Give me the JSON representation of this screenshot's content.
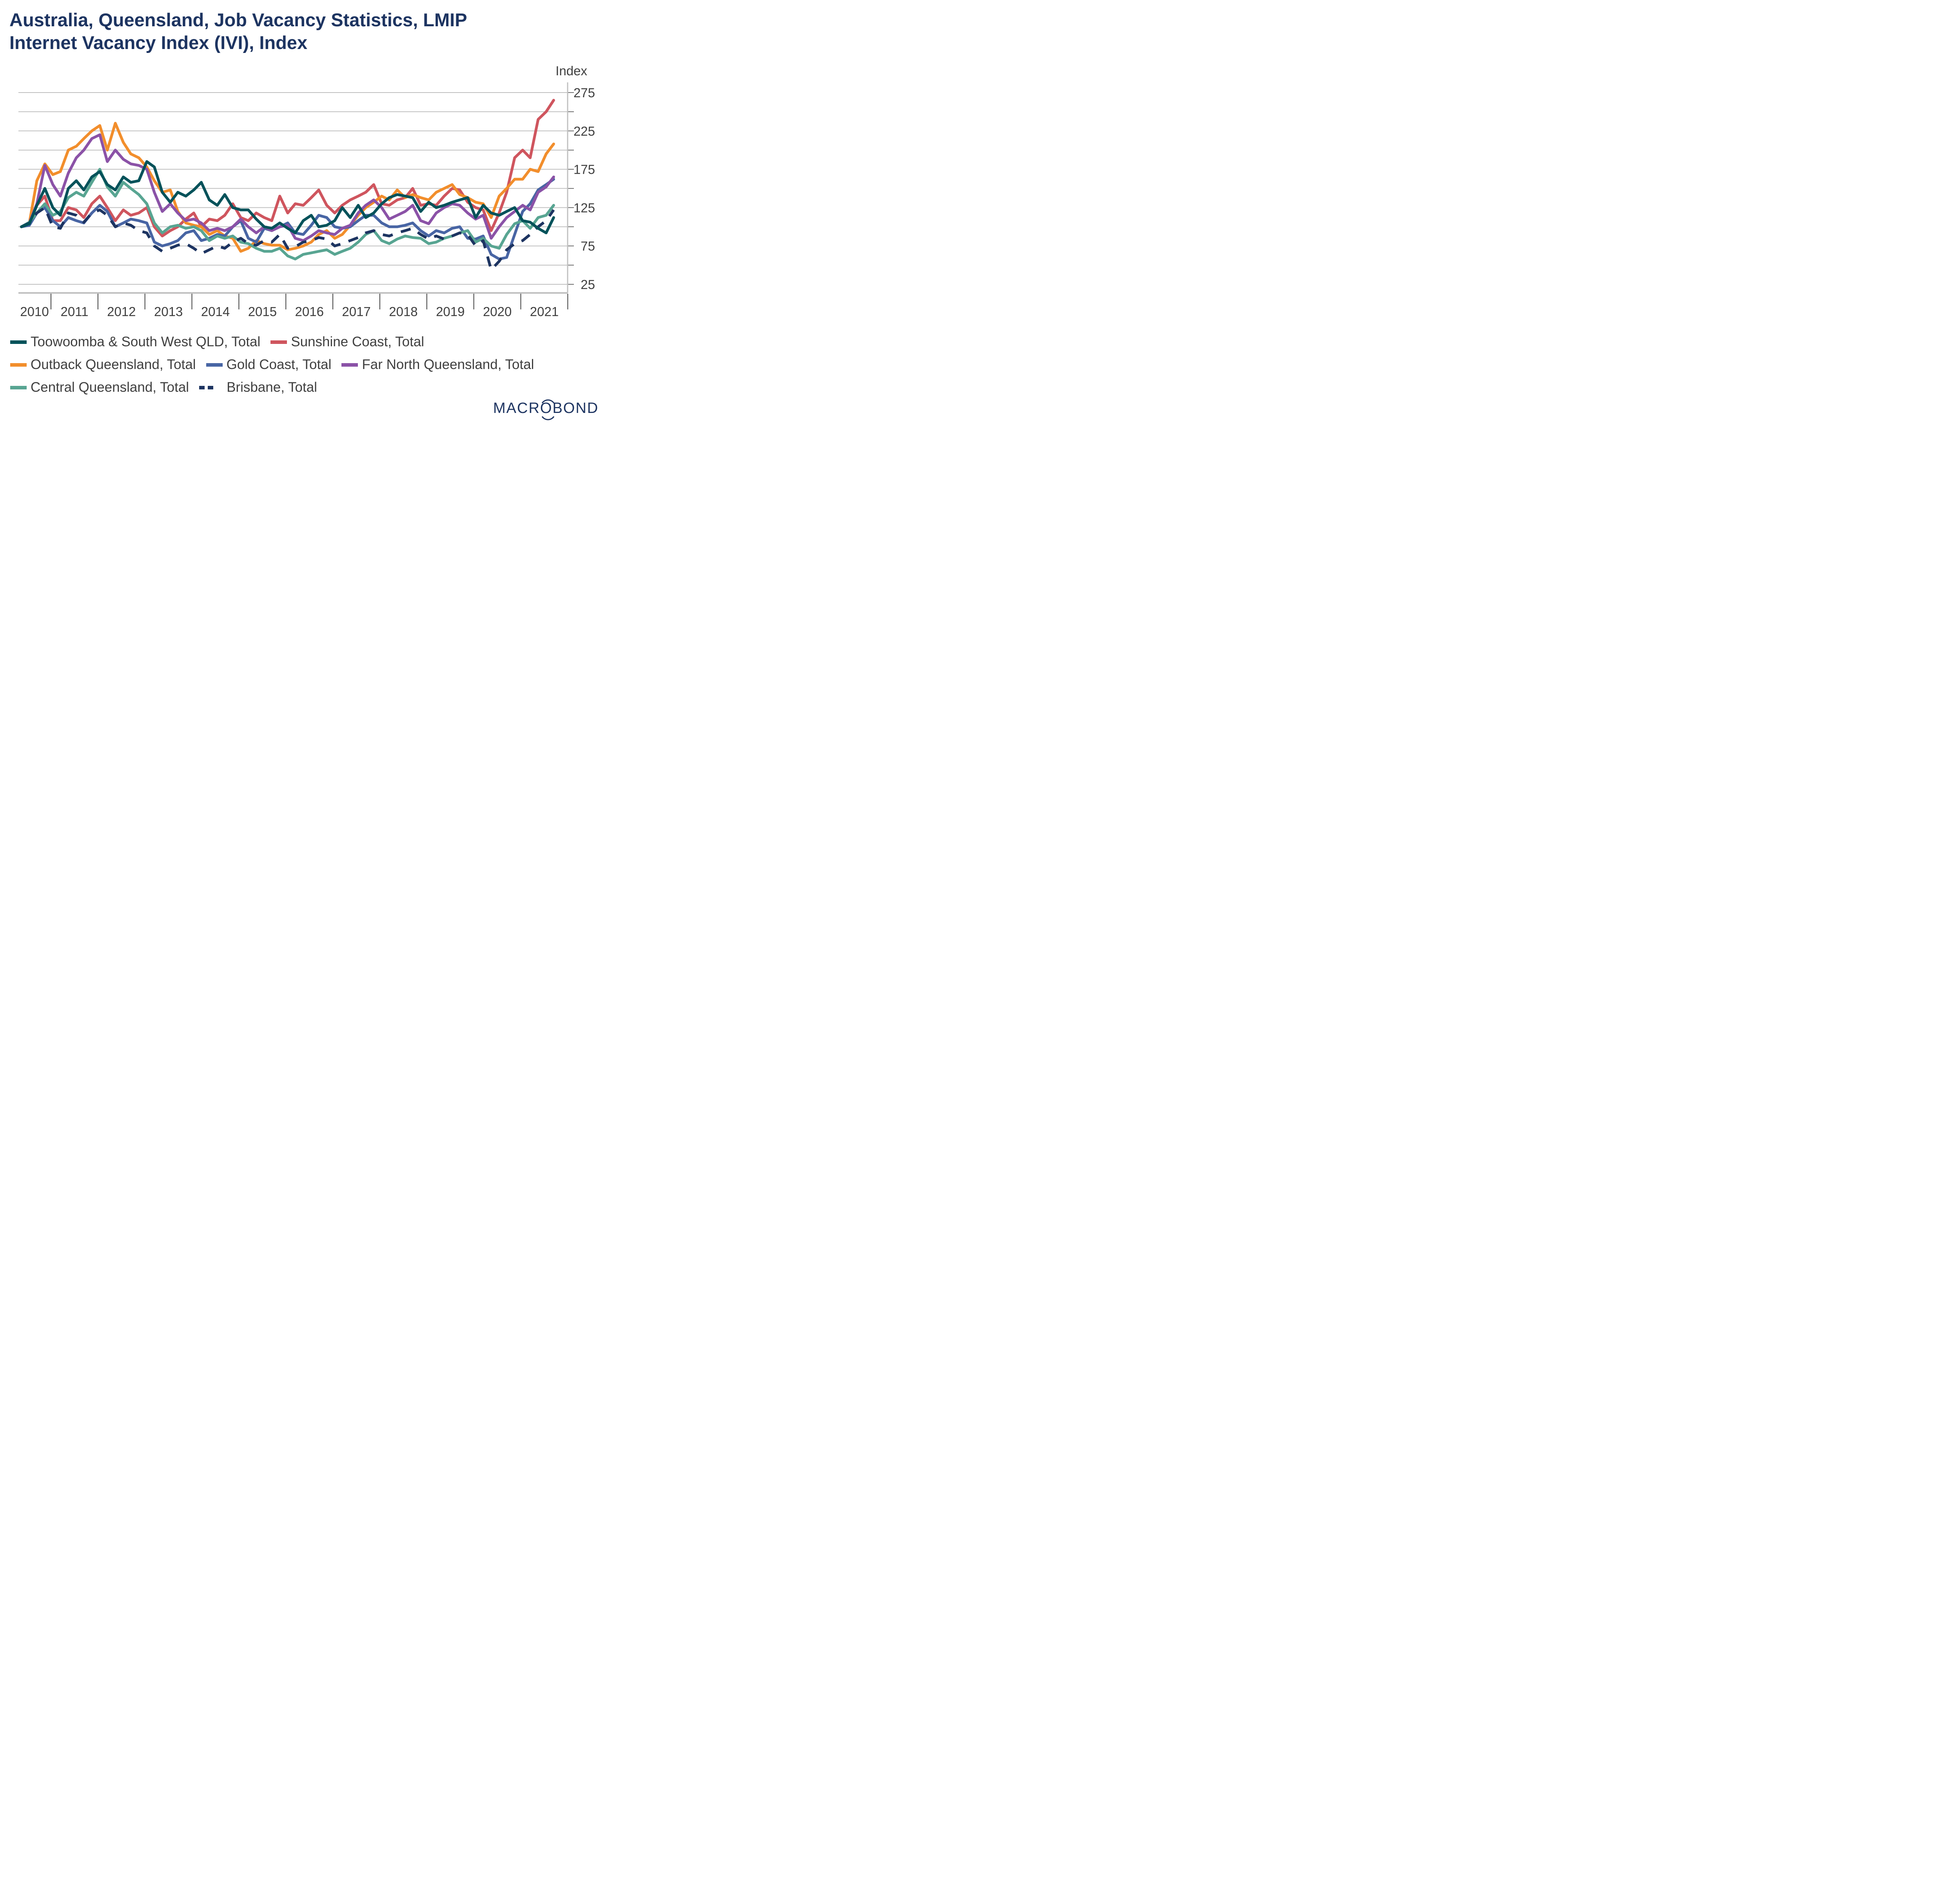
{
  "title_line1": "Australia, Queensland, Job Vacancy Statistics, LMIP",
  "title_line2": "Internet Vacancy Index (IVI), Index",
  "logo_text": "MACROBOND",
  "chart_data": {
    "type": "line",
    "title": "Australia, Queensland, Job Vacancy Statistics, LMIP Internet Vacancy Index (IVI), Index",
    "ylabel": "Index",
    "xlabel": "",
    "ylim": [
      5,
      290
    ],
    "xlim": [
      2010.0,
      2022.0
    ],
    "yticks": [
      25,
      75,
      125,
      175,
      225,
      275
    ],
    "yminor_ticks": [
      50,
      100,
      150,
      200,
      250
    ],
    "xtick_labels": [
      "2010",
      "2011",
      "2012",
      "2013",
      "2014",
      "2015",
      "2016",
      "2017",
      "2018",
      "2019",
      "2020",
      "2021"
    ],
    "y_axis_side": "right",
    "grid": true,
    "legend_position": "bottom",
    "x": [
      2010.37,
      2010.54,
      2010.7,
      2010.87,
      2011.04,
      2011.2,
      2011.37,
      2011.54,
      2011.7,
      2011.87,
      2012.04,
      2012.2,
      2012.37,
      2012.54,
      2012.7,
      2012.87,
      2013.04,
      2013.2,
      2013.37,
      2013.54,
      2013.7,
      2013.87,
      2014.04,
      2014.2,
      2014.37,
      2014.54,
      2014.7,
      2014.87,
      2015.04,
      2015.2,
      2015.37,
      2015.54,
      2015.7,
      2015.87,
      2016.04,
      2016.2,
      2016.37,
      2016.54,
      2016.7,
      2016.87,
      2017.04,
      2017.2,
      2017.37,
      2017.54,
      2017.7,
      2017.87,
      2018.04,
      2018.2,
      2018.37,
      2018.54,
      2018.7,
      2018.87,
      2019.04,
      2019.2,
      2019.37,
      2019.54,
      2019.7,
      2019.87,
      2020.04,
      2020.2,
      2020.37,
      2020.54,
      2020.7,
      2020.87,
      2021.04,
      2021.2,
      2021.37,
      2021.54,
      2021.7
    ],
    "series": [
      {
        "name": "Toowoomba & South West QLD, Total",
        "color": "#03525a",
        "dash": false,
        "values": [
          100,
          104,
          128,
          150,
          125,
          115,
          150,
          160,
          148,
          165,
          172,
          155,
          148,
          165,
          158,
          160,
          185,
          178,
          145,
          132,
          145,
          140,
          148,
          158,
          135,
          128,
          142,
          125,
          122,
          122,
          110,
          100,
          98,
          105,
          98,
          92,
          108,
          115,
          100,
          102,
          108,
          125,
          112,
          128,
          112,
          118,
          130,
          138,
          142,
          140,
          138,
          120,
          132,
          125,
          128,
          132,
          135,
          138,
          112,
          128,
          118,
          115,
          120,
          125,
          108,
          106,
          98,
          92,
          112
        ]
      },
      {
        "name": "Sunshine Coast, Total",
        "color": "#cf555e",
        "dash": false,
        "values": [
          100,
          104,
          128,
          140,
          108,
          108,
          125,
          122,
          112,
          130,
          140,
          125,
          108,
          122,
          115,
          118,
          125,
          100,
          88,
          95,
          100,
          110,
          118,
          100,
          110,
          108,
          115,
          130,
          112,
          108,
          118,
          112,
          108,
          140,
          118,
          130,
          128,
          138,
          148,
          128,
          118,
          128,
          135,
          140,
          145,
          155,
          130,
          128,
          135,
          138,
          150,
          128,
          130,
          128,
          140,
          150,
          148,
          132,
          125,
          122,
          95,
          118,
          145,
          190,
          200,
          190,
          240,
          250,
          265
        ]
      },
      {
        "name": "Outback Queensland, Total",
        "color": "#f28e2c",
        "dash": false,
        "values": [
          100,
          105,
          160,
          182,
          168,
          172,
          200,
          205,
          215,
          225,
          232,
          200,
          235,
          210,
          195,
          190,
          178,
          160,
          145,
          148,
          120,
          105,
          102,
          100,
          90,
          95,
          88,
          85,
          68,
          72,
          82,
          78,
          76,
          76,
          70,
          72,
          75,
          80,
          90,
          95,
          85,
          90,
          102,
          115,
          125,
          132,
          140,
          135,
          148,
          138,
          142,
          138,
          135,
          145,
          150,
          155,
          142,
          138,
          132,
          130,
          112,
          140,
          150,
          162,
          162,
          175,
          172,
          195,
          208
        ]
      },
      {
        "name": "Gold Coast, Total",
        "color": "#4865a4",
        "dash": false,
        "values": [
          100,
          102,
          118,
          125,
          108,
          100,
          112,
          108,
          105,
          118,
          128,
          120,
          100,
          105,
          110,
          108,
          105,
          80,
          75,
          78,
          82,
          92,
          95,
          82,
          85,
          90,
          88,
          100,
          108,
          85,
          80,
          98,
          95,
          100,
          105,
          92,
          90,
          102,
          115,
          112,
          100,
          98,
          100,
          108,
          115,
          115,
          105,
          100,
          100,
          102,
          105,
          95,
          88,
          95,
          92,
          98,
          100,
          85,
          84,
          88,
          64,
          58,
          60,
          90,
          120,
          130,
          148,
          155,
          162
        ]
      },
      {
        "name": "Far North Queensland, Total",
        "color": "#8b52a7",
        "dash": false,
        "values": [
          100,
          105,
          130,
          180,
          155,
          140,
          170,
          190,
          200,
          215,
          220,
          185,
          200,
          188,
          182,
          180,
          175,
          145,
          120,
          130,
          118,
          108,
          110,
          105,
          95,
          98,
          95,
          100,
          110,
          100,
          92,
          100,
          95,
          100,
          102,
          85,
          82,
          88,
          95,
          92,
          90,
          98,
          102,
          118,
          128,
          135,
          125,
          110,
          115,
          120,
          128,
          108,
          104,
          118,
          125,
          130,
          128,
          118,
          110,
          115,
          85,
          100,
          112,
          120,
          128,
          122,
          145,
          152,
          165
        ]
      },
      {
        "name": "Central Queensland, Total",
        "color": "#58a592",
        "dash": false,
        "values": [
          100,
          106,
          118,
          130,
          115,
          120,
          138,
          145,
          140,
          158,
          175,
          152,
          140,
          158,
          150,
          142,
          130,
          105,
          92,
          100,
          102,
          98,
          100,
          95,
          82,
          88,
          85,
          88,
          80,
          78,
          72,
          68,
          68,
          72,
          62,
          58,
          64,
          66,
          68,
          70,
          64,
          68,
          72,
          80,
          90,
          95,
          82,
          78,
          84,
          88,
          86,
          85,
          78,
          80,
          85,
          88,
          92,
          95,
          80,
          85,
          75,
          72,
          90,
          104,
          108,
          98,
          112,
          115,
          128
        ]
      },
      {
        "name": "Brisbane, Total",
        "color": "#1d3461",
        "dash": true,
        "values": [
          100,
          105,
          118,
          125,
          100,
          98,
          118,
          115,
          106,
          118,
          122,
          115,
          100,
          105,
          102,
          95,
          92,
          75,
          68,
          72,
          76,
          78,
          72,
          65,
          70,
          75,
          72,
          80,
          85,
          78,
          76,
          82,
          80,
          90,
          72,
          74,
          80,
          82,
          86,
          84,
          75,
          78,
          82,
          86,
          92,
          95,
          90,
          88,
          92,
          95,
          98,
          90,
          84,
          88,
          84,
          88,
          92,
          90,
          75,
          82,
          44,
          55,
          70,
          78,
          82,
          90,
          100,
          108,
          122
        ]
      }
    ]
  }
}
